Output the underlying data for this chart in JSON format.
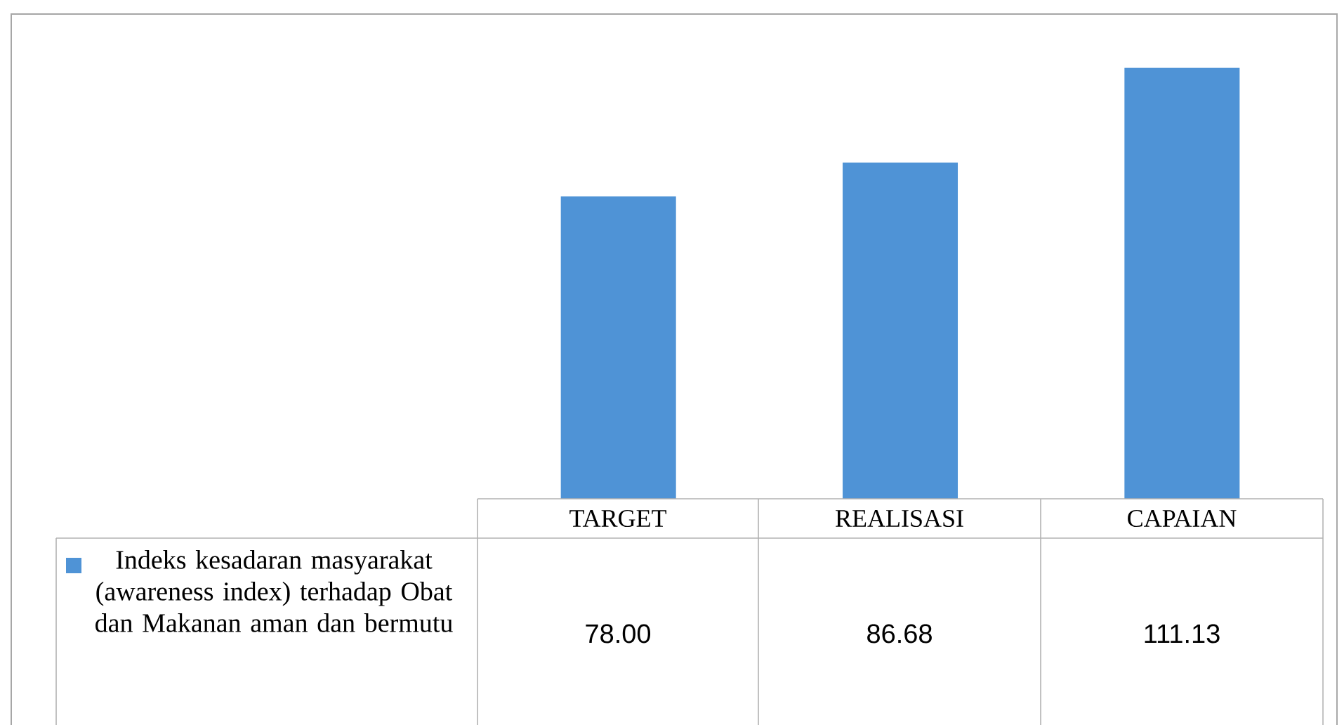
{
  "chart_data": {
    "type": "bar",
    "categories": [
      "TARGET",
      "REALISASI",
      "CAPAIAN"
    ],
    "series": [
      {
        "name": "Indeks kesadaran masyarakat (awareness index) terhadap Obat dan Makanan aman dan bermutu",
        "color": "#4f93d6",
        "values": [
          78.0,
          86.68,
          111.13
        ],
        "value_labels": [
          "78.00",
          "86.68",
          "111.13"
        ]
      }
    ],
    "ylim": [
      0,
      125
    ],
    "legend": "left"
  }
}
